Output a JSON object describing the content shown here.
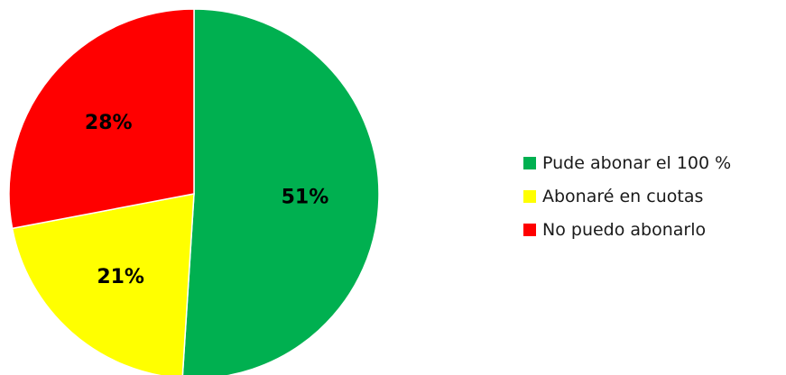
{
  "chart_data": {
    "type": "pie",
    "categories": [
      "Pude abonar el 100 %",
      "Abonaré en cuotas",
      "No puedo abonarlo"
    ],
    "values": [
      51,
      21,
      28
    ],
    "labels": [
      "51%",
      "21%",
      "28%"
    ],
    "colors": [
      "#00b050",
      "#ffff00",
      "#ff0000"
    ],
    "start": "12 o'clock",
    "direction": "clockwise",
    "legend": "right",
    "title": ""
  }
}
